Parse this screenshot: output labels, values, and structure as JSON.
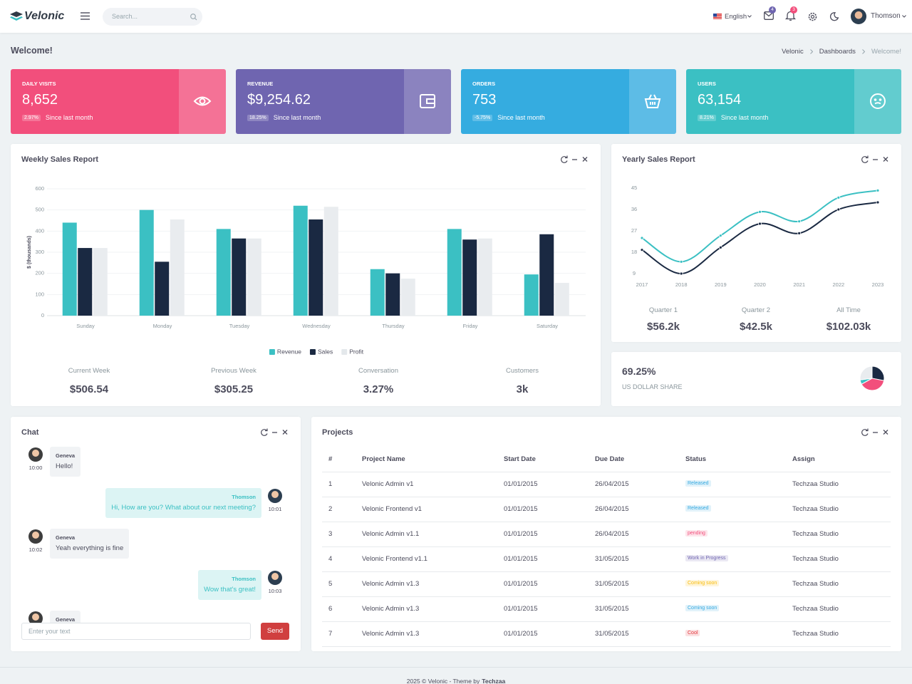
{
  "header": {
    "brand": "Velonic",
    "search_placeholder": "Search...",
    "language": "English",
    "mail_badge": "4",
    "notification_badge": "3",
    "user": "Thomson"
  },
  "page": {
    "title": "Welcome!",
    "breadcrumb": [
      "Velonic",
      "Dashboards",
      "Welcome!"
    ]
  },
  "stats": [
    {
      "label": "DAILY VISITS",
      "value": "8,652",
      "change": "2.97%",
      "note": "Since last month",
      "color": "#f24f7c"
    },
    {
      "label": "REVENUE",
      "value": "$9,254.62",
      "change": "18.25%",
      "note": "Since last month",
      "color": "#6f65b0"
    },
    {
      "label": "ORDERS",
      "value": "753",
      "change": "-5.75%",
      "note": "Since last month",
      "color": "#35ace0"
    },
    {
      "label": "USERS",
      "value": "63,154",
      "change": "8.21%",
      "note": "Since last month",
      "color": "#3bc0c3"
    }
  ],
  "weekly_summary": [
    {
      "label": "Current Week",
      "value": "$506.54"
    },
    {
      "label": "Previous Week",
      "value": "$305.25"
    },
    {
      "label": "Conversation",
      "value": "3.27%"
    },
    {
      "label": "Customers",
      "value": "3k"
    }
  ],
  "yearly_summary": [
    {
      "label": "Quarter 1",
      "value": "$56.2k"
    },
    {
      "label": "Quarter 2",
      "value": "$42.5k"
    },
    {
      "label": "All Time",
      "value": "$102.03k"
    }
  ],
  "share": {
    "value": "69.25%",
    "label": "US DOLLAR SHARE"
  },
  "chat": {
    "title": "Chat",
    "messages": [
      {
        "name": "Geneva",
        "time": "10:00",
        "text": "Hello!"
      },
      {
        "name": "Thomson",
        "time": "10:01",
        "text": "Hi, How are you? What about our next meeting?"
      },
      {
        "name": "Geneva",
        "time": "10:02",
        "text": "Yeah everything is fine"
      },
      {
        "name": "Thomson",
        "time": "10:03",
        "text": "Wow that's great!"
      },
      {
        "name": "Geneva"
      }
    ],
    "input_placeholder": "Enter your text",
    "send": "Send"
  },
  "projects": {
    "title": "Projects",
    "columns": [
      "#",
      "Project Name",
      "Start Date",
      "Due Date",
      "Status",
      "Assign"
    ],
    "rows": [
      [
        1,
        "Velonic Admin v1",
        "01/01/2015",
        "26/04/2015",
        "Released",
        "Techzaa Studio"
      ],
      [
        2,
        "Velonic Frontend v1",
        "01/01/2015",
        "26/04/2015",
        "Released",
        "Techzaa Studio"
      ],
      [
        3,
        "Velonic Admin v1.1",
        "01/01/2015",
        "26/04/2015",
        "pending",
        "Techzaa Studio"
      ],
      [
        4,
        "Velonic Frontend v1.1",
        "01/01/2015",
        "31/05/2015",
        "Work in Progress",
        "Techzaa Studio"
      ],
      [
        5,
        "Velonic Admin v1.3",
        "01/01/2015",
        "31/05/2015",
        "Coming soon",
        "Techzaa Studio"
      ],
      [
        6,
        "Velonic Admin v1.3",
        "01/01/2015",
        "31/05/2015",
        "Coming soon",
        "Techzaa Studio"
      ],
      [
        7,
        "Velonic Admin v1.3",
        "01/01/2015",
        "31/05/2015",
        "Cool",
        "Techzaa Studio"
      ]
    ],
    "status_colors": [
      "#35a9e0",
      "#35a9e0",
      "#f24f7c",
      "#6f65b0",
      "#f9bc0b",
      "#35a9e0",
      "#e3383f"
    ]
  },
  "footer": {
    "text": "2025 © Velonic - Theme by",
    "link": "Techzaa"
  },
  "chart_data": [
    {
      "type": "bar",
      "title": "Weekly Sales Report",
      "y_label": "$ (thousands)",
      "categories": [
        "Sunday",
        "Monday",
        "Tuesday",
        "Wednesday",
        "Thursday",
        "Friday",
        "Saturday"
      ],
      "series": [
        {
          "name": "Revenue",
          "color": "#3bc0c3",
          "values": [
            440,
            500,
            410,
            520,
            220,
            410,
            195
          ]
        },
        {
          "name": "Sales",
          "color": "#1a2942",
          "values": [
            320,
            255,
            365,
            455,
            200,
            360,
            385
          ]
        },
        {
          "name": "Profit",
          "color": "#e9ecef",
          "values": [
            320,
            455,
            365,
            515,
            175,
            365,
            155
          ]
        }
      ],
      "ylim": [
        0,
        600
      ],
      "yticks": [
        0,
        100,
        200,
        300,
        400,
        500,
        600
      ],
      "grid": true,
      "legend": "bottom"
    },
    {
      "type": "line",
      "title": "Yearly Sales Report",
      "categories": [
        "2017",
        "2018",
        "2019",
        "2020",
        "2021",
        "2022",
        "2023"
      ],
      "series": [
        {
          "color": "#3bc0c3",
          "values": [
            24,
            14,
            25,
            35,
            31,
            41,
            44
          ]
        },
        {
          "color": "#1a2942",
          "values": [
            19,
            9,
            20,
            30,
            26,
            36,
            39
          ]
        }
      ],
      "ylim": [
        9,
        45
      ],
      "yticks": [
        9,
        18,
        27,
        36,
        45
      ]
    },
    {
      "type": "pie",
      "values": [
        28,
        39,
        6,
        27
      ],
      "colors": [
        "#1a2942",
        "#f24f7c",
        "#3bc0c3",
        "#e9ecef"
      ]
    }
  ]
}
